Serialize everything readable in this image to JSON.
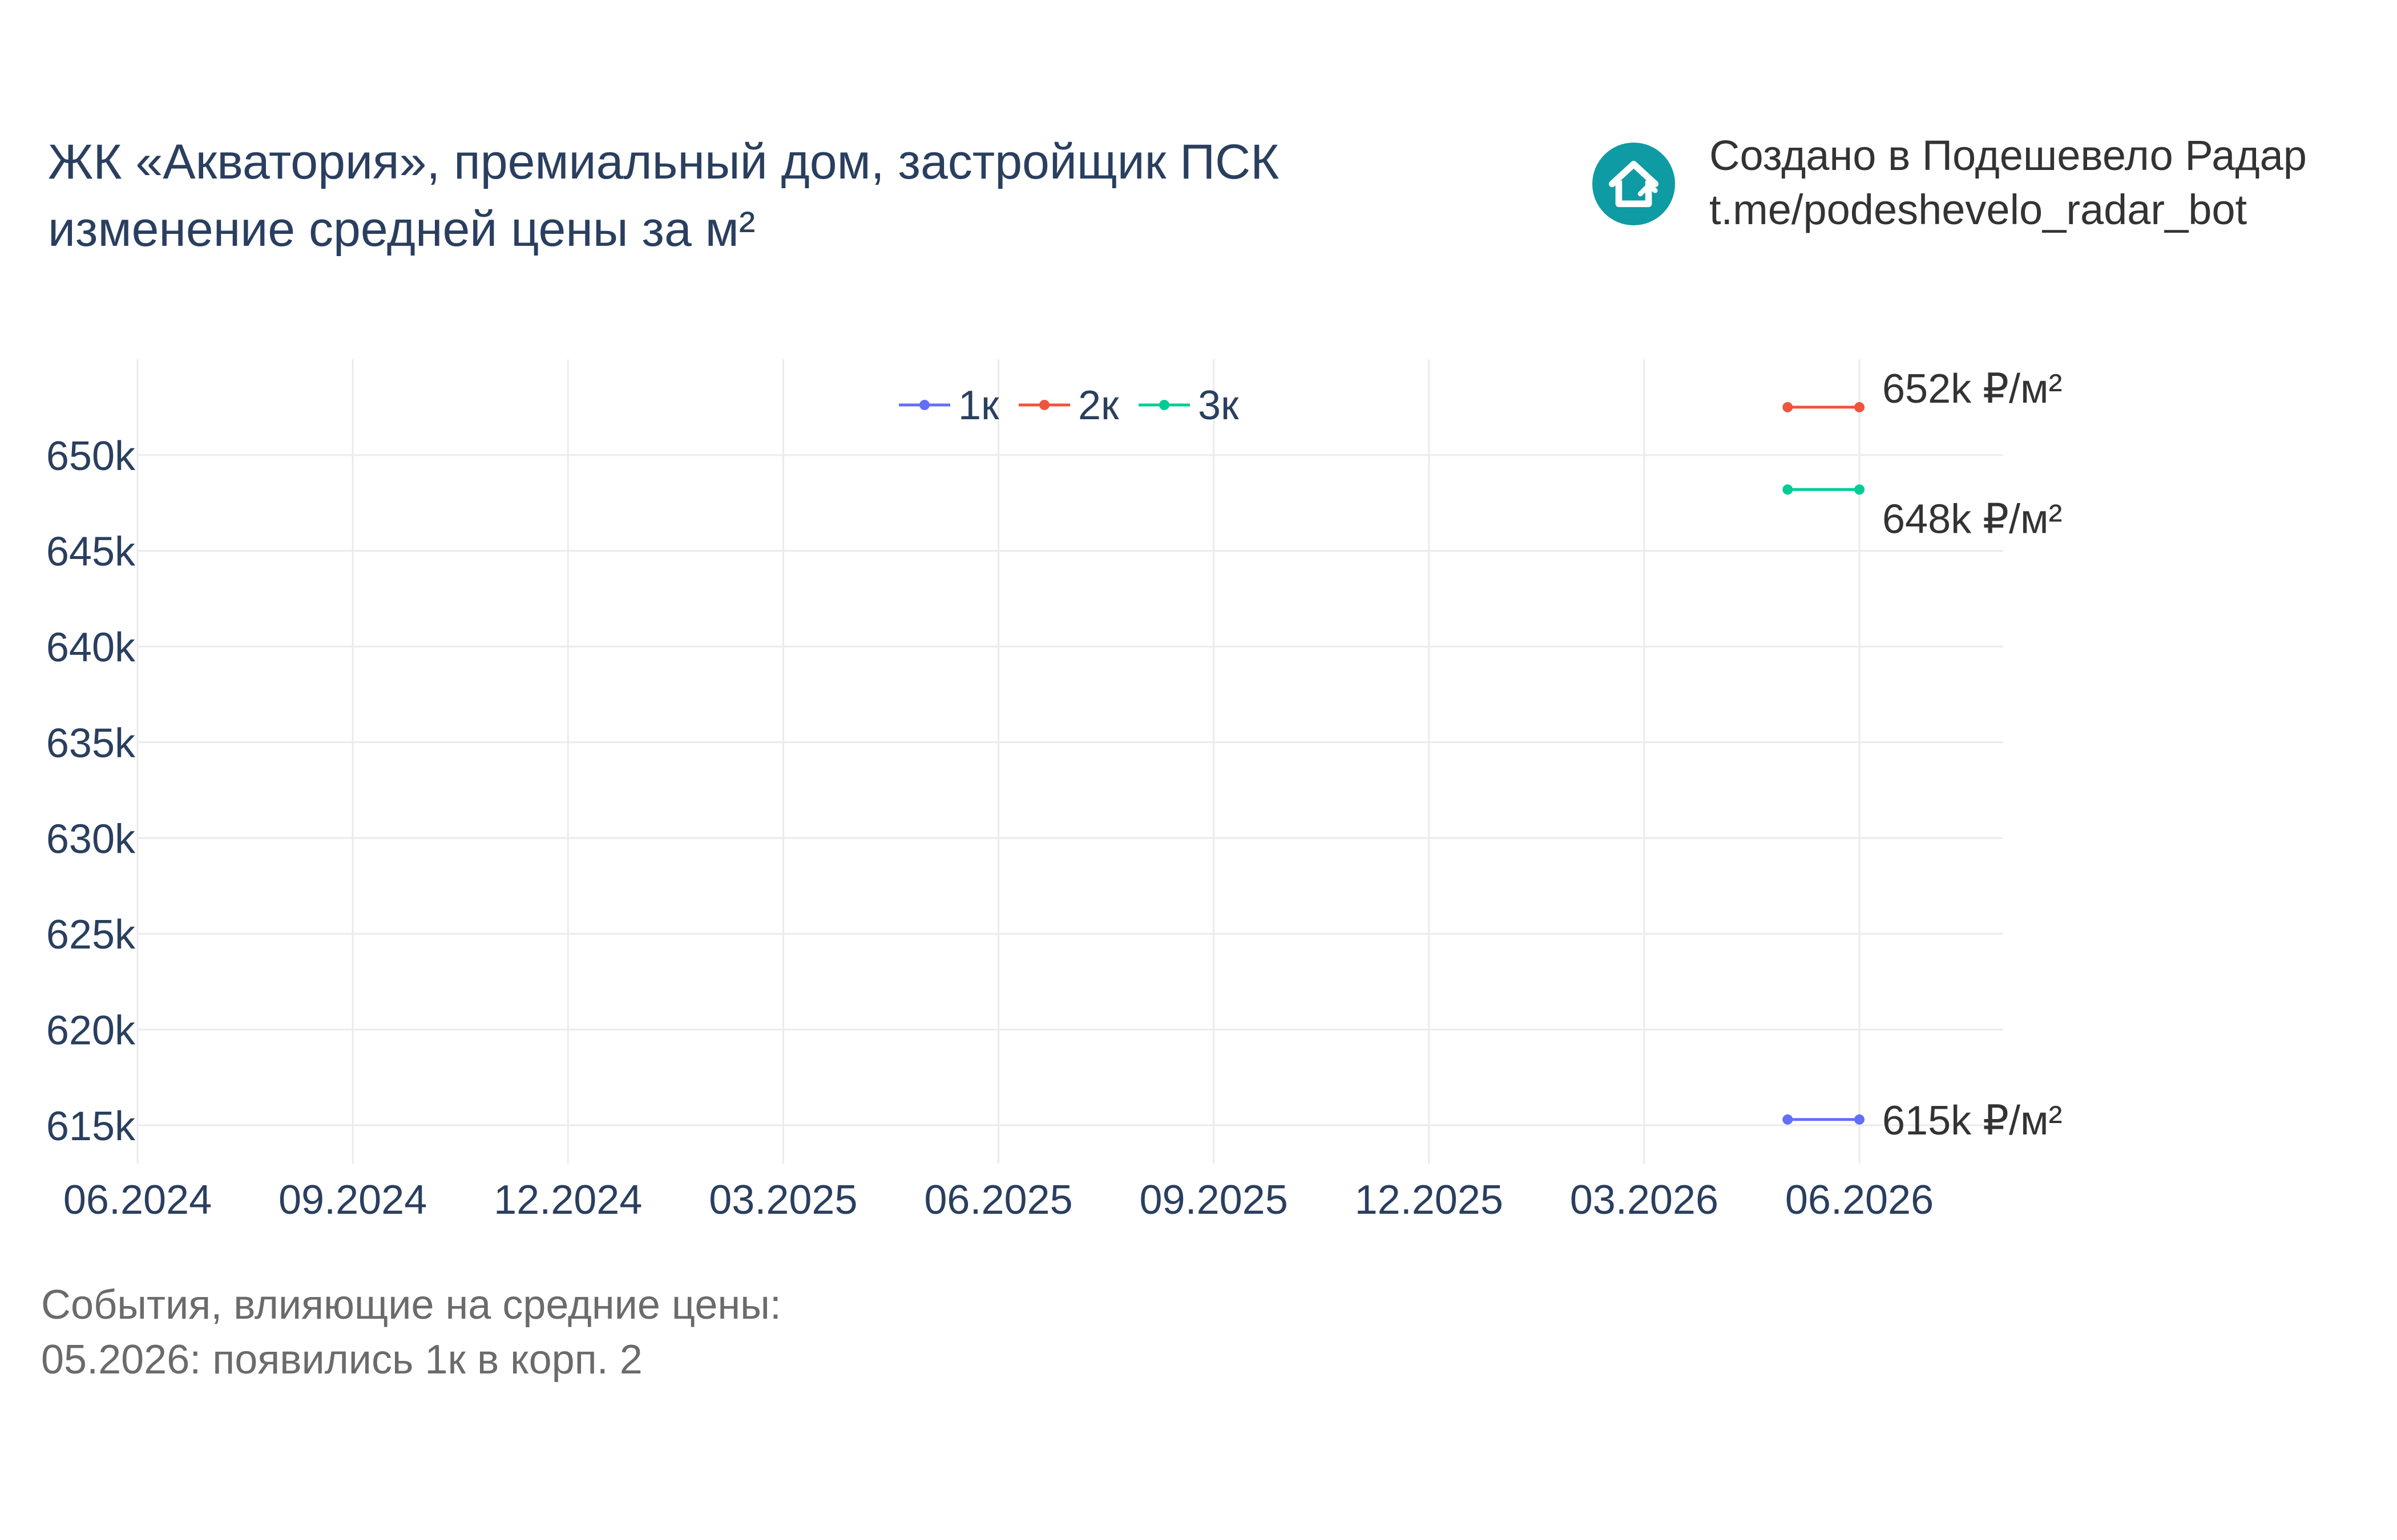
{
  "title": {
    "line1": "ЖК «Акватория», премиальный дом, застройщик ПСК",
    "line2": "изменение средней цены за м²"
  },
  "brand": {
    "line1": "Создано в Подешевело Радар",
    "line2": "t.me/podeshevelo_radar_bot",
    "icon": "house-icon",
    "color": "#0e9ba4"
  },
  "events": {
    "header": "События, влияющие на средние цены:",
    "items": [
      "05.2026: появились 1к в корп. 2"
    ]
  },
  "chart_data": {
    "type": "line",
    "x_ticks": [
      "06.2024",
      "09.2024",
      "12.2024",
      "03.2025",
      "06.2025",
      "09.2025",
      "12.2025",
      "03.2026",
      "06.2026"
    ],
    "y_ticks": [
      "615k",
      "620k",
      "625k",
      "630k",
      "635k",
      "640k",
      "645k",
      "650k"
    ],
    "ylim": [
      613000,
      655000
    ],
    "xlim": [
      "2024-06",
      "2026-06"
    ],
    "grid": true,
    "legend_position": "top-center",
    "series": [
      {
        "name": "1к",
        "color": "#636efa",
        "x": [
          "2026-05",
          "2026-06"
        ],
        "y": [
          615300,
          615300
        ],
        "end_label": "615k ₽/м²"
      },
      {
        "name": "2к",
        "color": "#ef553b",
        "x": [
          "2026-05",
          "2026-06"
        ],
        "y": [
          652500,
          652500
        ],
        "end_label": "652k ₽/м²"
      },
      {
        "name": "3к",
        "color": "#00cc96",
        "x": [
          "2026-05",
          "2026-06"
        ],
        "y": [
          648200,
          648200
        ],
        "end_label": "648k ₽/м²"
      }
    ]
  }
}
